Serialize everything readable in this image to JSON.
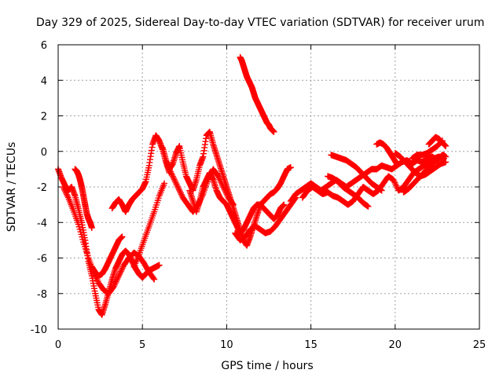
{
  "chart_data": {
    "type": "scatter",
    "title": "Day 329 of 2025, Sidereal Day-to-day VTEC variation (SDTVAR) for receiver urum",
    "xlabel": "GPS time / hours",
    "ylabel": "SDTVAR / TECUs",
    "xlim": [
      0,
      25
    ],
    "ylim": [
      -10,
      6
    ],
    "xticks": [
      "0",
      "5",
      "10",
      "15",
      "20",
      "25"
    ],
    "yticks": [
      "-10",
      "-8",
      "-6",
      "-4",
      "-2",
      "0",
      "2",
      "4",
      "6"
    ],
    "grid": true,
    "marker": "plus",
    "color": "#ff0000",
    "series": [
      {
        "x": [
          0.0,
          0.2,
          0.4,
          0.6,
          0.8,
          1.0,
          1.2,
          1.4,
          1.6,
          1.8,
          2.0,
          2.2,
          2.4,
          2.6,
          2.8,
          3.0,
          3.2,
          3.4,
          3.6,
          3.8,
          4.0,
          4.2,
          4.4,
          4.6,
          4.8,
          5.0,
          5.2,
          5.4,
          5.6,
          5.8,
          6.0
        ],
        "y": [
          -1.0,
          -1.5,
          -1.9,
          -2.2,
          -2.0,
          -2.5,
          -3.2,
          -4.0,
          -5.0,
          -6.2,
          -7.0,
          -8.0,
          -8.9,
          -9.2,
          -8.6,
          -7.9,
          -7.2,
          -6.6,
          -6.2,
          -5.8,
          -5.6,
          -5.8,
          -6.2,
          -6.6,
          -6.9,
          -7.1,
          -6.9,
          -6.7,
          -6.6,
          -6.5,
          -6.4
        ]
      },
      {
        "x": [
          0.3,
          0.6,
          0.9,
          1.2,
          1.5,
          1.8,
          2.1,
          2.4,
          2.7,
          3.0,
          3.3,
          3.6,
          3.9,
          4.2,
          4.5,
          4.8,
          5.1,
          5.4,
          5.7
        ],
        "y": [
          -2.0,
          -2.6,
          -3.3,
          -4.1,
          -5.1,
          -6.0,
          -6.8,
          -7.4,
          -7.8,
          -8.0,
          -7.6,
          -7.0,
          -6.4,
          -6.0,
          -5.7,
          -5.9,
          -6.3,
          -6.8,
          -7.2
        ]
      },
      {
        "x": [
          1.0,
          1.1,
          1.2,
          1.3,
          1.4,
          1.5,
          1.6,
          1.7,
          1.8,
          1.9,
          2.0
        ],
        "y": [
          -1.0,
          -1.1,
          -1.3,
          -1.6,
          -2.0,
          -2.5,
          -3.0,
          -3.5,
          -3.8,
          -4.0,
          -4.3
        ]
      },
      {
        "x": [
          2.0,
          2.2,
          2.4,
          2.6,
          2.8,
          3.0,
          3.2,
          3.4,
          3.6,
          3.8
        ],
        "y": [
          -6.5,
          -6.8,
          -7.0,
          -6.9,
          -6.6,
          -6.2,
          -5.8,
          -5.4,
          -5.0,
          -4.8
        ]
      },
      {
        "x": [
          3.2,
          3.4,
          3.6,
          3.8,
          4.0,
          4.2,
          4.4,
          4.6,
          4.8,
          5.0,
          5.2,
          5.4,
          5.6,
          5.8,
          6.0,
          6.2,
          6.4,
          6.6
        ],
        "y": [
          -3.2,
          -2.9,
          -2.7,
          -3.0,
          -3.4,
          -3.0,
          -2.7,
          -2.5,
          -2.3,
          -2.1,
          -1.7,
          -0.8,
          0.4,
          0.9,
          0.6,
          0.1,
          -0.6,
          -1.2
        ]
      },
      {
        "x": [
          4.5,
          4.8,
          5.1,
          5.4,
          5.7,
          6.0,
          6.3
        ],
        "y": [
          -6.5,
          -5.8,
          -5.0,
          -4.2,
          -3.4,
          -2.5,
          -1.8
        ]
      },
      {
        "x": [
          6.2,
          6.4,
          6.6,
          6.8,
          7.0,
          7.2,
          7.4,
          7.6,
          7.8,
          8.0,
          8.2,
          8.4,
          8.6,
          8.8,
          9.0,
          9.2,
          9.4,
          9.6,
          9.8,
          10.0,
          10.2,
          10.4,
          10.6,
          10.8,
          11.0,
          11.2,
          11.4,
          11.6,
          11.8,
          12.0,
          12.2,
          12.4,
          12.6,
          12.8,
          13.0,
          13.2,
          13.4,
          13.6,
          13.8
        ],
        "y": [
          0.2,
          -0.5,
          -1.0,
          -0.7,
          -0.1,
          0.3,
          -0.6,
          -1.4,
          -1.8,
          -2.2,
          -1.6,
          -0.8,
          -0.3,
          0.9,
          1.1,
          0.4,
          -0.2,
          -0.8,
          -1.4,
          -2.0,
          -2.6,
          -3.2,
          -3.8,
          -4.4,
          -5.0,
          -5.3,
          -4.8,
          -4.2,
          -3.6,
          -3.0,
          -2.8,
          -2.6,
          -2.4,
          -2.3,
          -2.1,
          -1.8,
          -1.4,
          -1.0,
          -0.9
        ]
      },
      {
        "x": [
          6.5,
          6.8,
          7.1,
          7.4,
          7.7,
          8.0,
          8.3,
          8.6,
          8.9,
          9.2,
          9.5,
          9.8,
          10.1,
          10.4
        ],
        "y": [
          -0.8,
          -1.4,
          -2.0,
          -2.6,
          -3.0,
          -3.4,
          -3.0,
          -2.4,
          -1.6,
          -1.0,
          -1.4,
          -2.0,
          -2.6,
          -3.0
        ]
      },
      {
        "x": [
          7.8,
          8.0,
          8.2,
          8.4,
          8.6,
          8.8,
          9.0,
          9.2,
          9.4,
          9.6,
          9.8,
          10.0,
          10.2,
          10.4,
          10.6,
          10.8,
          11.0,
          11.2,
          11.4,
          11.6,
          11.8,
          12.0,
          12.2,
          12.4,
          12.6,
          12.8,
          13.0,
          13.2,
          13.4
        ],
        "y": [
          -2.2,
          -2.8,
          -3.4,
          -2.8,
          -2.0,
          -1.6,
          -1.2,
          -1.6,
          -2.2,
          -2.6,
          -2.8,
          -3.0,
          -3.4,
          -3.8,
          -4.2,
          -4.6,
          -4.4,
          -4.0,
          -3.6,
          -3.2,
          -3.0,
          -3.0,
          -3.2,
          -3.4,
          -3.6,
          -3.8,
          -3.6,
          -3.2,
          -3.0
        ]
      },
      {
        "x": [
          10.5,
          10.8,
          11.1,
          11.4,
          11.7,
          12.0,
          12.3,
          12.6,
          12.9,
          13.2,
          13.5,
          13.8,
          14.1
        ],
        "y": [
          -4.6,
          -5.0,
          -4.8,
          -4.4,
          -4.2,
          -4.4,
          -4.6,
          -4.5,
          -4.2,
          -3.8,
          -3.4,
          -3.0,
          -2.6
        ]
      },
      {
        "x": [
          10.8,
          10.9,
          11.0,
          11.1,
          11.2,
          11.3,
          11.4,
          11.5,
          11.6,
          11.7,
          11.8,
          11.9,
          12.0,
          12.1,
          12.2,
          12.3,
          12.4,
          12.5,
          12.6,
          12.7,
          12.8
        ],
        "y": [
          5.3,
          5.1,
          4.8,
          4.5,
          4.2,
          4.0,
          3.8,
          3.6,
          3.3,
          3.0,
          2.8,
          2.6,
          2.4,
          2.2,
          2.0,
          1.8,
          1.6,
          1.5,
          1.3,
          1.2,
          1.1
        ]
      },
      {
        "x": [
          13.8,
          14.1,
          14.4,
          14.7,
          15.0,
          15.3,
          15.6,
          15.9,
          16.2,
          16.5,
          16.8,
          17.1,
          17.4,
          17.7,
          18.0,
          18.3,
          18.6,
          18.9,
          19.2,
          19.5,
          19.8,
          20.1,
          20.4,
          20.7,
          21.0,
          21.3,
          21.6,
          21.9,
          22.2,
          22.5,
          22.8,
          23.0
        ],
        "y": [
          -2.8,
          -2.4,
          -2.2,
          -2.0,
          -1.8,
          -2.0,
          -2.2,
          -2.0,
          -1.8,
          -1.6,
          -1.8,
          -2.0,
          -1.8,
          -1.6,
          -1.4,
          -1.2,
          -1.0,
          -1.0,
          -0.8,
          -0.9,
          -1.0,
          -0.8,
          -0.6,
          -0.5,
          -0.7,
          -0.5,
          -0.6,
          -0.4,
          -0.3,
          -0.5,
          -0.2,
          -0.3
        ]
      },
      {
        "x": [
          14.5,
          14.8,
          15.1,
          15.4,
          15.7,
          16.0,
          16.3,
          16.6,
          16.9,
          17.2,
          17.5,
          17.8,
          18.1,
          18.4,
          18.7,
          19.0,
          19.3,
          19.6,
          19.9,
          20.2,
          20.5,
          20.8,
          21.1,
          21.4,
          21.7,
          22.0,
          22.3,
          22.6,
          22.9
        ],
        "y": [
          -2.6,
          -2.2,
          -2.0,
          -2.2,
          -2.4,
          -2.3,
          -2.5,
          -2.6,
          -2.8,
          -3.0,
          -2.8,
          -2.4,
          -2.0,
          -2.2,
          -2.4,
          -2.2,
          -1.8,
          -1.4,
          -1.6,
          -2.2,
          -2.0,
          -1.6,
          -1.2,
          -1.0,
          -0.8,
          -0.6,
          -0.4,
          -0.3,
          -0.4
        ]
      },
      {
        "x": [
          16.0,
          16.3,
          16.6,
          16.9,
          17.2,
          17.5,
          17.8,
          18.1,
          18.4
        ],
        "y": [
          -1.4,
          -1.5,
          -1.7,
          -2.0,
          -2.2,
          -2.4,
          -2.6,
          -2.9,
          -3.1
        ]
      },
      {
        "x": [
          16.2,
          16.5,
          16.8,
          17.1,
          17.4,
          17.7,
          18.0,
          18.3,
          18.6,
          18.9,
          19.2
        ],
        "y": [
          -0.2,
          -0.3,
          -0.4,
          -0.5,
          -0.7,
          -0.9,
          -1.2,
          -1.5,
          -1.8,
          -2.0,
          -2.2
        ]
      },
      {
        "x": [
          18.9,
          19.1,
          19.3,
          19.5,
          19.7,
          19.9,
          20.1
        ],
        "y": [
          0.4,
          0.5,
          0.4,
          0.2,
          -0.1,
          -0.4,
          -0.7
        ]
      },
      {
        "x": [
          20.0,
          20.3,
          20.6,
          20.9,
          21.2,
          21.5,
          21.8,
          22.1,
          22.4,
          22.7,
          23.0
        ],
        "y": [
          -0.1,
          -0.3,
          -0.6,
          -0.9,
          -1.2,
          -1.4,
          -1.3,
          -1.1,
          -0.9,
          -0.7,
          -0.6
        ]
      },
      {
        "x": [
          20.5,
          20.8,
          21.1,
          21.4,
          21.7,
          22.0,
          22.3,
          22.6,
          22.9
        ],
        "y": [
          -2.3,
          -2.1,
          -1.8,
          -1.5,
          -1.2,
          -0.9,
          -0.6,
          -0.4,
          -0.2
        ]
      },
      {
        "x": [
          21.0,
          21.3,
          21.6,
          21.9,
          22.2,
          22.5,
          22.8
        ],
        "y": [
          -0.4,
          -0.2,
          -0.2,
          -0.1,
          0.1,
          0.3,
          0.6
        ]
      },
      {
        "x": [
          22.0,
          22.2,
          22.4,
          22.6,
          22.8,
          23.0
        ],
        "y": [
          0.4,
          0.6,
          0.8,
          0.7,
          0.5,
          0.3
        ]
      }
    ]
  }
}
